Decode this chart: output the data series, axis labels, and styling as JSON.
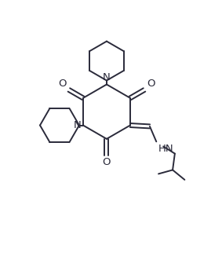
{
  "bg_color": "#ffffff",
  "line_color": "#2a2a3a",
  "figsize": [
    2.83,
    3.26
  ],
  "dpi": 100,
  "xlim": [
    0,
    10
  ],
  "ylim": [
    0,
    11.5
  ]
}
